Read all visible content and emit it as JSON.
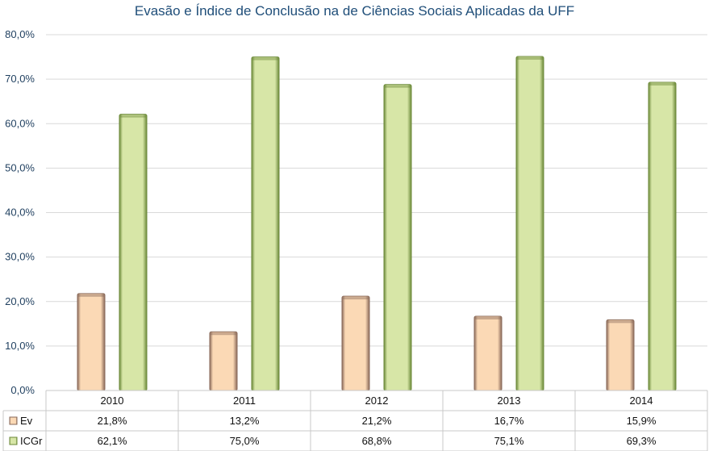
{
  "chart_data": {
    "type": "bar",
    "title": "Evasão e Índice de Conclusão na de Ciências Sociais Aplicadas da UFF",
    "categories": [
      "2010",
      "2011",
      "2012",
      "2013",
      "2014"
    ],
    "series": [
      {
        "name": "Ev",
        "values": [
          21.8,
          13.2,
          21.2,
          16.7,
          15.9
        ],
        "labels": [
          "21,8%",
          "13,2%",
          "21,2%",
          "16,7%",
          "15,9%"
        ],
        "color": "#fbd9b5",
        "edge_color": "#8a6a5a"
      },
      {
        "name": "ICGr",
        "values": [
          62.1,
          75.0,
          68.8,
          75.1,
          69.3
        ],
        "labels": [
          "62,1%",
          "75,0%",
          "68,8%",
          "75,1%",
          "69,3%"
        ],
        "color": "#d7e6a7",
        "edge_color": "#6c8a3a"
      }
    ],
    "ylim": [
      0,
      80
    ],
    "yticks": [
      "0,0%",
      "10,0%",
      "20,0%",
      "30,0%",
      "40,0%",
      "50,0%",
      "60,0%",
      "70,0%",
      "80,0%"
    ],
    "grid": true,
    "data_table": true
  }
}
